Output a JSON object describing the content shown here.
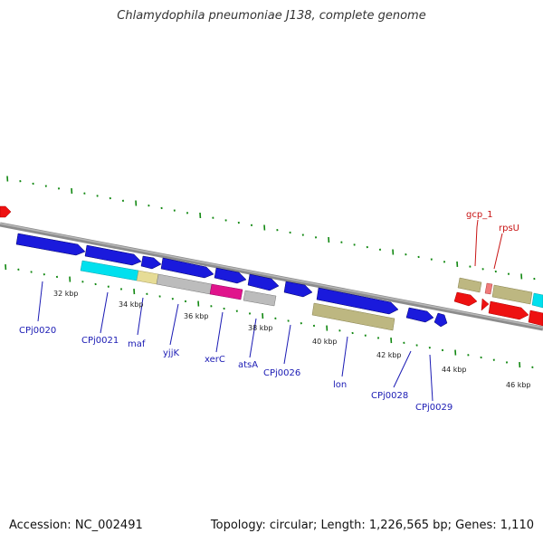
{
  "title": "Chlamydophila pneumoniae J138, complete genome",
  "footer": {
    "accession": "Accession: NC_002491",
    "info": "Topology: circular; Length: 1,226,565 bp; Genes: 1,110"
  },
  "colors": {
    "blue": "#1a1adc",
    "cyan": "#00e0ee",
    "khaki": "#bdb781",
    "yellow": "#e6dc96",
    "grey": "#bcbcbc",
    "magenta": "#e0148c",
    "red": "#ee1111",
    "pink": "#f07a7a",
    "backbone": "#8c8c8c",
    "tick": "#118811",
    "blue_label": "#1a1ab4",
    "red_label": "#c81414"
  },
  "kbp_labels": [
    "32 kbp",
    "34 kbp",
    "36 kbp",
    "38 kbp",
    "40 kbp",
    "42 kbp",
    "44 kbp",
    "46 kbp"
  ],
  "gene_labels_blue": [
    "CPj0020",
    "CPj0021",
    "maf",
    "yjjK",
    "xerC",
    "atsA",
    "CPj0026",
    "lon",
    "CPj0028",
    "CPj0029"
  ],
  "gene_labels_red": [
    "gcp_1",
    "rpsU"
  ]
}
